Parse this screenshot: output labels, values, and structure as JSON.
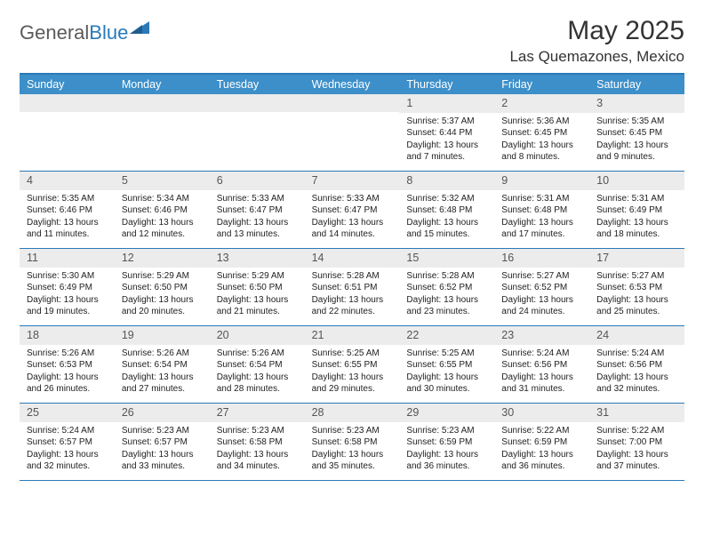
{
  "logo": {
    "word1": "General",
    "word2": "Blue"
  },
  "title": "May 2025",
  "location": "Las Quemazones, Mexico",
  "colors": {
    "header_bg": "#3d8fc9",
    "border": "#2a7ab9",
    "daynum_bg": "#ececec",
    "logo_gray": "#5a5a5a",
    "logo_blue": "#2a7ab9"
  },
  "weekdays": [
    "Sunday",
    "Monday",
    "Tuesday",
    "Wednesday",
    "Thursday",
    "Friday",
    "Saturday"
  ],
  "weeks": [
    [
      null,
      null,
      null,
      null,
      {
        "n": "1",
        "sr": "5:37 AM",
        "ss": "6:44 PM",
        "dl": "13 hours and 7 minutes."
      },
      {
        "n": "2",
        "sr": "5:36 AM",
        "ss": "6:45 PM",
        "dl": "13 hours and 8 minutes."
      },
      {
        "n": "3",
        "sr": "5:35 AM",
        "ss": "6:45 PM",
        "dl": "13 hours and 9 minutes."
      }
    ],
    [
      {
        "n": "4",
        "sr": "5:35 AM",
        "ss": "6:46 PM",
        "dl": "13 hours and 11 minutes."
      },
      {
        "n": "5",
        "sr": "5:34 AM",
        "ss": "6:46 PM",
        "dl": "13 hours and 12 minutes."
      },
      {
        "n": "6",
        "sr": "5:33 AM",
        "ss": "6:47 PM",
        "dl": "13 hours and 13 minutes."
      },
      {
        "n": "7",
        "sr": "5:33 AM",
        "ss": "6:47 PM",
        "dl": "13 hours and 14 minutes."
      },
      {
        "n": "8",
        "sr": "5:32 AM",
        "ss": "6:48 PM",
        "dl": "13 hours and 15 minutes."
      },
      {
        "n": "9",
        "sr": "5:31 AM",
        "ss": "6:48 PM",
        "dl": "13 hours and 17 minutes."
      },
      {
        "n": "10",
        "sr": "5:31 AM",
        "ss": "6:49 PM",
        "dl": "13 hours and 18 minutes."
      }
    ],
    [
      {
        "n": "11",
        "sr": "5:30 AM",
        "ss": "6:49 PM",
        "dl": "13 hours and 19 minutes."
      },
      {
        "n": "12",
        "sr": "5:29 AM",
        "ss": "6:50 PM",
        "dl": "13 hours and 20 minutes."
      },
      {
        "n": "13",
        "sr": "5:29 AM",
        "ss": "6:50 PM",
        "dl": "13 hours and 21 minutes."
      },
      {
        "n": "14",
        "sr": "5:28 AM",
        "ss": "6:51 PM",
        "dl": "13 hours and 22 minutes."
      },
      {
        "n": "15",
        "sr": "5:28 AM",
        "ss": "6:52 PM",
        "dl": "13 hours and 23 minutes."
      },
      {
        "n": "16",
        "sr": "5:27 AM",
        "ss": "6:52 PM",
        "dl": "13 hours and 24 minutes."
      },
      {
        "n": "17",
        "sr": "5:27 AM",
        "ss": "6:53 PM",
        "dl": "13 hours and 25 minutes."
      }
    ],
    [
      {
        "n": "18",
        "sr": "5:26 AM",
        "ss": "6:53 PM",
        "dl": "13 hours and 26 minutes."
      },
      {
        "n": "19",
        "sr": "5:26 AM",
        "ss": "6:54 PM",
        "dl": "13 hours and 27 minutes."
      },
      {
        "n": "20",
        "sr": "5:26 AM",
        "ss": "6:54 PM",
        "dl": "13 hours and 28 minutes."
      },
      {
        "n": "21",
        "sr": "5:25 AM",
        "ss": "6:55 PM",
        "dl": "13 hours and 29 minutes."
      },
      {
        "n": "22",
        "sr": "5:25 AM",
        "ss": "6:55 PM",
        "dl": "13 hours and 30 minutes."
      },
      {
        "n": "23",
        "sr": "5:24 AM",
        "ss": "6:56 PM",
        "dl": "13 hours and 31 minutes."
      },
      {
        "n": "24",
        "sr": "5:24 AM",
        "ss": "6:56 PM",
        "dl": "13 hours and 32 minutes."
      }
    ],
    [
      {
        "n": "25",
        "sr": "5:24 AM",
        "ss": "6:57 PM",
        "dl": "13 hours and 32 minutes."
      },
      {
        "n": "26",
        "sr": "5:23 AM",
        "ss": "6:57 PM",
        "dl": "13 hours and 33 minutes."
      },
      {
        "n": "27",
        "sr": "5:23 AM",
        "ss": "6:58 PM",
        "dl": "13 hours and 34 minutes."
      },
      {
        "n": "28",
        "sr": "5:23 AM",
        "ss": "6:58 PM",
        "dl": "13 hours and 35 minutes."
      },
      {
        "n": "29",
        "sr": "5:23 AM",
        "ss": "6:59 PM",
        "dl": "13 hours and 36 minutes."
      },
      {
        "n": "30",
        "sr": "5:22 AM",
        "ss": "6:59 PM",
        "dl": "13 hours and 36 minutes."
      },
      {
        "n": "31",
        "sr": "5:22 AM",
        "ss": "7:00 PM",
        "dl": "13 hours and 37 minutes."
      }
    ]
  ],
  "labels": {
    "sunrise_prefix": "Sunrise: ",
    "sunset_prefix": "Sunset: ",
    "daylight_prefix": "Daylight: "
  }
}
